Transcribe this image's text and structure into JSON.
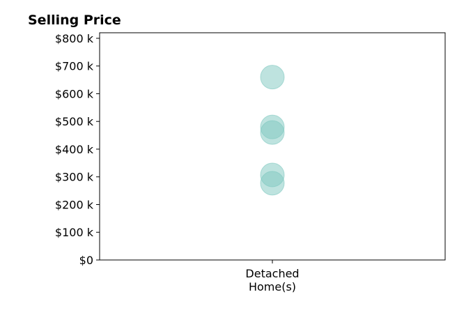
{
  "chart_data": {
    "type": "scatter",
    "title": "Selling Price",
    "xlabel": "",
    "ylabel": "",
    "categories": [
      [
        "Detached",
        "Home(s)"
      ]
    ],
    "ylim": [
      0,
      820000
    ],
    "yticks": [
      0,
      100000,
      200000,
      300000,
      400000,
      500000,
      600000,
      700000,
      800000
    ],
    "ytick_labels": [
      "$0",
      "$100 k",
      "$200 k",
      "$300 k",
      "$400 k",
      "$500 k",
      "$600 k",
      "$700 k",
      "$800 k"
    ],
    "series": [
      {
        "category_index": 0,
        "values": [
          660000,
          480000,
          460000,
          307000,
          277000
        ],
        "color": "#7ec8c0",
        "opacity": 0.5
      }
    ],
    "grid": false,
    "legend": "none"
  }
}
